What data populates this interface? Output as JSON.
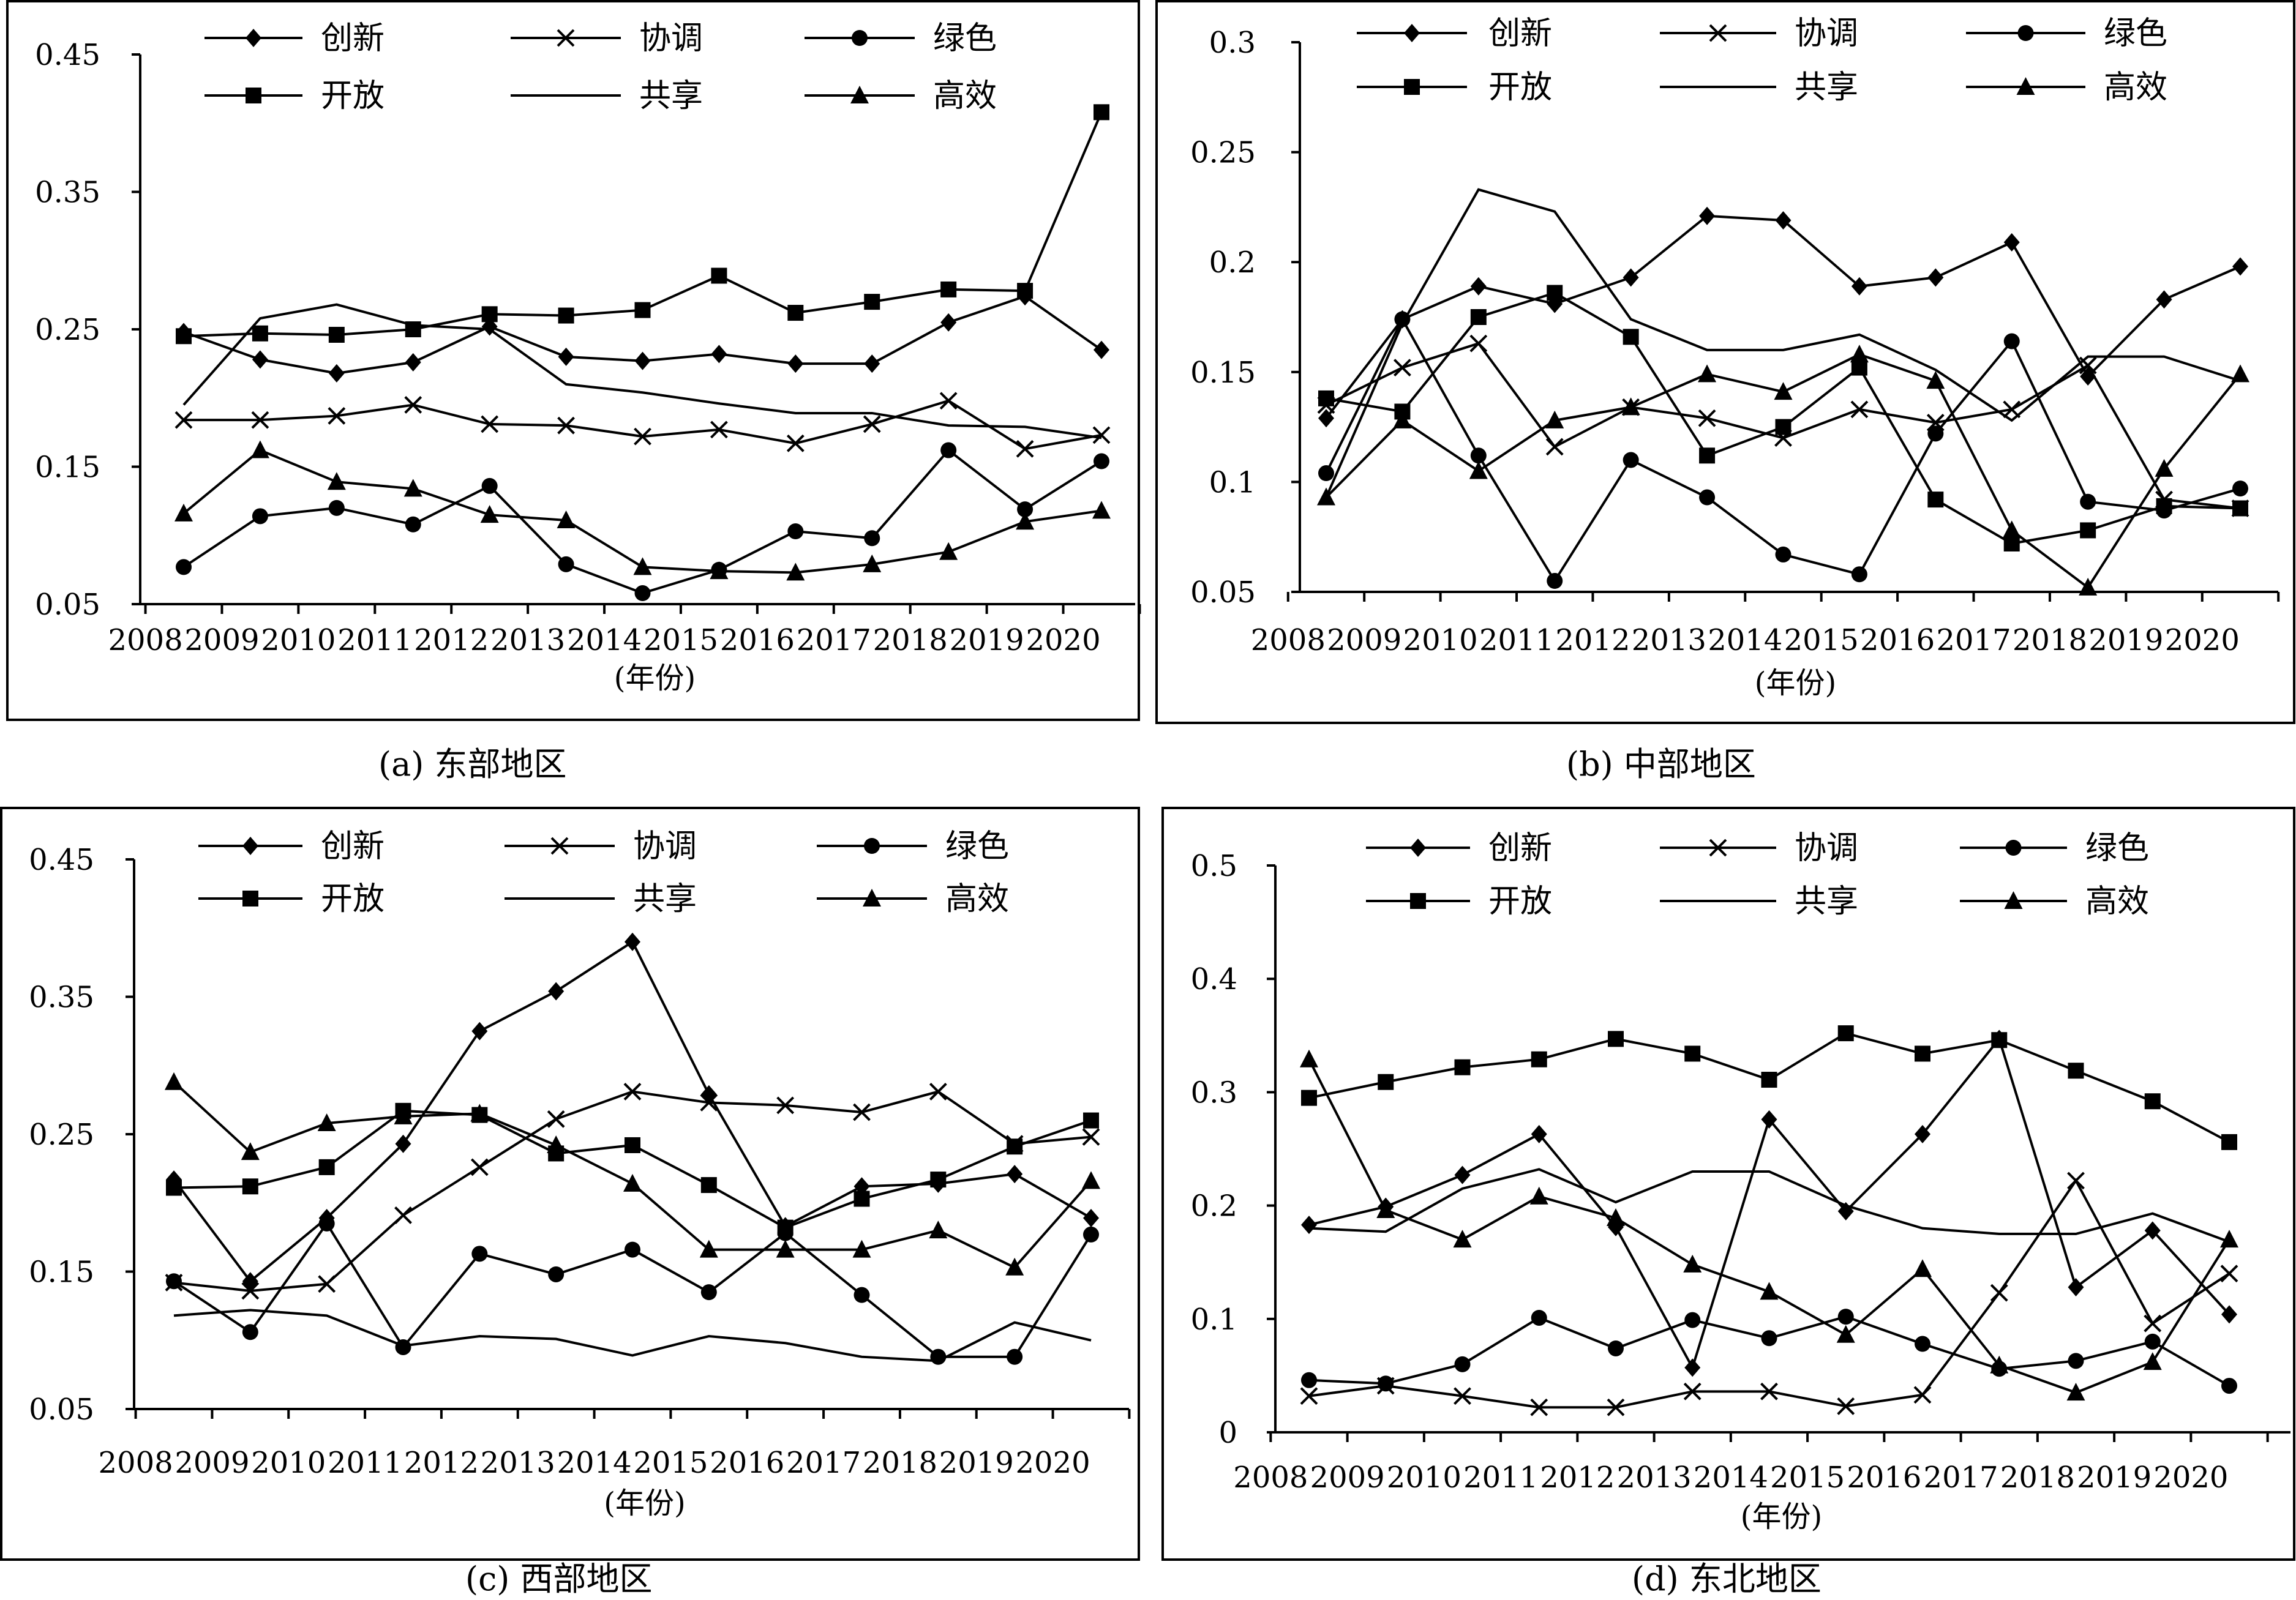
{
  "legend_labels": [
    "创新",
    "协调",
    "绿色",
    "开放",
    "共享",
    "高效"
  ],
  "legend_markers": [
    "diamond",
    "x",
    "circle",
    "square",
    "none",
    "triangle"
  ],
  "chart_data": [
    {
      "type": "line",
      "caption": "(a)  东部地区",
      "xlabel": "(年份)",
      "ylabel": "",
      "ylim": [
        0.05,
        0.45
      ],
      "yticks": [
        "0.45",
        "0.35",
        "0.25",
        "0.15",
        "0.05"
      ],
      "x": [
        "2008",
        "2009",
        "2010",
        "2011",
        "2012",
        "2013",
        "2014",
        "2015",
        "2016",
        "2017",
        "2018",
        "2019",
        "2020"
      ],
      "series": [
        {
          "name": "创新",
          "marker": "diamond",
          "values": [
            0.248,
            0.228,
            0.218,
            0.226,
            0.252,
            0.23,
            0.227,
            0.232,
            0.225,
            0.225,
            0.255,
            0.274,
            0.235
          ]
        },
        {
          "name": "协调",
          "marker": "x",
          "values": [
            0.184,
            0.184,
            0.187,
            0.195,
            0.181,
            0.18,
            0.172,
            0.177,
            0.167,
            0.181,
            0.198,
            0.163,
            0.173
          ]
        },
        {
          "name": "绿色",
          "marker": "circle",
          "values": [
            0.077,
            0.114,
            0.12,
            0.108,
            0.136,
            0.079,
            0.058,
            0.075,
            0.103,
            0.098,
            0.162,
            0.119,
            0.154
          ]
        },
        {
          "name": "开放",
          "marker": "square",
          "values": [
            0.245,
            0.247,
            0.246,
            0.25,
            0.261,
            0.26,
            0.264,
            0.289,
            0.262,
            0.27,
            0.279,
            0.278,
            0.408
          ]
        },
        {
          "name": "共享",
          "marker": "none",
          "values": [
            0.195,
            0.258,
            0.268,
            0.253,
            0.25,
            0.21,
            0.204,
            0.196,
            0.189,
            0.189,
            0.18,
            0.179,
            0.171
          ]
        },
        {
          "name": "高效",
          "marker": "triangle",
          "values": [
            0.116,
            0.162,
            0.139,
            0.134,
            0.115,
            0.111,
            0.077,
            0.074,
            0.073,
            0.079,
            0.088,
            0.11,
            0.118
          ]
        }
      ]
    },
    {
      "type": "line",
      "caption": "(b)  中部地区",
      "xlabel": "(年份)",
      "ylabel": "",
      "ylim": [
        0.05,
        0.3
      ],
      "yticks": [
        "0.3",
        "0.25",
        "0.2",
        "0.15",
        "0.1",
        "0.05"
      ],
      "x": [
        "2008",
        "2009",
        "2010",
        "2011",
        "2012",
        "2013",
        "2014",
        "2015",
        "2016",
        "2017",
        "2018",
        "2019",
        "2020"
      ],
      "series": [
        {
          "name": "创新",
          "marker": "diamond",
          "values": [
            0.129,
            0.174,
            0.189,
            0.181,
            0.193,
            0.221,
            0.219,
            0.189,
            0.193,
            0.209,
            0.148,
            0.183,
            0.198
          ]
        },
        {
          "name": "协调",
          "marker": "x",
          "values": [
            0.135,
            0.152,
            0.163,
            0.116,
            0.134,
            0.129,
            0.12,
            0.133,
            0.127,
            0.133,
            0.153,
            0.092,
            0.088
          ]
        },
        {
          "name": "绿色",
          "marker": "circle",
          "values": [
            0.104,
            0.174,
            0.112,
            0.055,
            0.11,
            0.093,
            0.067,
            0.058,
            0.122,
            0.164,
            0.091,
            0.087,
            0.097
          ]
        },
        {
          "name": "开放",
          "marker": "square",
          "values": [
            0.138,
            0.132,
            0.175,
            0.186,
            0.166,
            0.112,
            0.125,
            0.152,
            0.092,
            0.072,
            0.078,
            0.089,
            0.088
          ]
        },
        {
          "name": "共享",
          "marker": "none",
          "values": [
            0.093,
            0.172,
            0.233,
            0.223,
            0.174,
            0.16,
            0.16,
            0.167,
            0.151,
            0.128,
            0.157,
            0.157,
            0.146
          ]
        },
        {
          "name": "高效",
          "marker": "triangle",
          "values": [
            0.093,
            0.128,
            0.105,
            0.128,
            0.134,
            0.149,
            0.141,
            0.158,
            0.146,
            0.078,
            0.052,
            0.106,
            0.149
          ]
        }
      ]
    },
    {
      "type": "line",
      "caption": "(c)  西部地区",
      "xlabel": "(年份)",
      "ylabel": "",
      "ylim": [
        0.05,
        0.45
      ],
      "yticks": [
        "0.45",
        "0.35",
        "0.25",
        "0.15",
        "0.05"
      ],
      "x": [
        "2008",
        "2009",
        "2010",
        "2011",
        "2012",
        "2013",
        "2014",
        "2015",
        "2016",
        "2017",
        "2018",
        "2019",
        "2020"
      ],
      "series": [
        {
          "name": "创新",
          "marker": "diamond",
          "values": [
            0.217,
            0.143,
            0.189,
            0.243,
            0.325,
            0.354,
            0.39,
            0.279,
            0.183,
            0.212,
            0.214,
            0.221,
            0.189
          ]
        },
        {
          "name": "协调",
          "marker": "x",
          "values": [
            0.142,
            0.136,
            0.141,
            0.191,
            0.226,
            0.261,
            0.281,
            0.273,
            0.271,
            0.266,
            0.281,
            0.243,
            0.248
          ]
        },
        {
          "name": "绿色",
          "marker": "circle",
          "values": [
            0.143,
            0.106,
            0.185,
            0.095,
            0.163,
            0.148,
            0.166,
            0.135,
            0.178,
            0.133,
            0.088,
            0.088,
            0.177
          ]
        },
        {
          "name": "开放",
          "marker": "square",
          "values": [
            0.211,
            0.212,
            0.226,
            0.267,
            0.264,
            0.236,
            0.242,
            0.213,
            0.182,
            0.203,
            0.217,
            0.241,
            0.26
          ]
        },
        {
          "name": "共享",
          "marker": "none",
          "values": [
            0.118,
            0.122,
            0.118,
            0.096,
            0.103,
            0.101,
            0.089,
            0.103,
            0.098,
            0.088,
            0.085,
            0.113,
            0.1
          ]
        },
        {
          "name": "高效",
          "marker": "triangle",
          "values": [
            0.288,
            0.237,
            0.258,
            0.263,
            0.265,
            0.242,
            0.214,
            0.166,
            0.166,
            0.166,
            0.18,
            0.153,
            0.216
          ]
        }
      ]
    },
    {
      "type": "line",
      "caption": "(d)  东北地区",
      "xlabel": "(年份)",
      "ylabel": "",
      "ylim": [
        0,
        0.5
      ],
      "yticks": [
        "0.5",
        "0.4",
        "0.3",
        "0.2",
        "0.1",
        "0"
      ],
      "x": [
        "2008",
        "2009",
        "2010",
        "2011",
        "2012",
        "2013",
        "2014",
        "2015",
        "2016",
        "2017",
        "2018",
        "2019",
        "2020"
      ],
      "series": [
        {
          "name": "创新",
          "marker": "diamond",
          "values": [
            0.183,
            0.199,
            0.227,
            0.263,
            0.181,
            0.057,
            0.276,
            0.195,
            0.263,
            0.347,
            0.128,
            0.178,
            0.104
          ]
        },
        {
          "name": "协调",
          "marker": "x",
          "values": [
            0.032,
            0.041,
            0.032,
            0.022,
            0.022,
            0.036,
            0.036,
            0.023,
            0.033,
            0.123,
            0.222,
            0.096,
            0.14
          ]
        },
        {
          "name": "绿色",
          "marker": "circle",
          "values": [
            0.046,
            0.043,
            0.06,
            0.101,
            0.074,
            0.099,
            0.083,
            0.102,
            0.078,
            0.056,
            0.063,
            0.08,
            0.041
          ]
        },
        {
          "name": "开放",
          "marker": "square",
          "values": [
            0.295,
            0.309,
            0.322,
            0.329,
            0.347,
            0.334,
            0.311,
            0.352,
            0.334,
            0.346,
            0.319,
            0.292,
            0.256
          ]
        },
        {
          "name": "共享",
          "marker": "none",
          "values": [
            0.18,
            0.177,
            0.215,
            0.232,
            0.203,
            0.23,
            0.23,
            0.2,
            0.18,
            0.175,
            0.175,
            0.193,
            0.168
          ]
        },
        {
          "name": "高效",
          "marker": "triangle",
          "values": [
            0.329,
            0.196,
            0.17,
            0.208,
            0.189,
            0.148,
            0.124,
            0.086,
            0.144,
            0.059,
            0.035,
            0.062,
            0.17
          ]
        }
      ]
    }
  ]
}
